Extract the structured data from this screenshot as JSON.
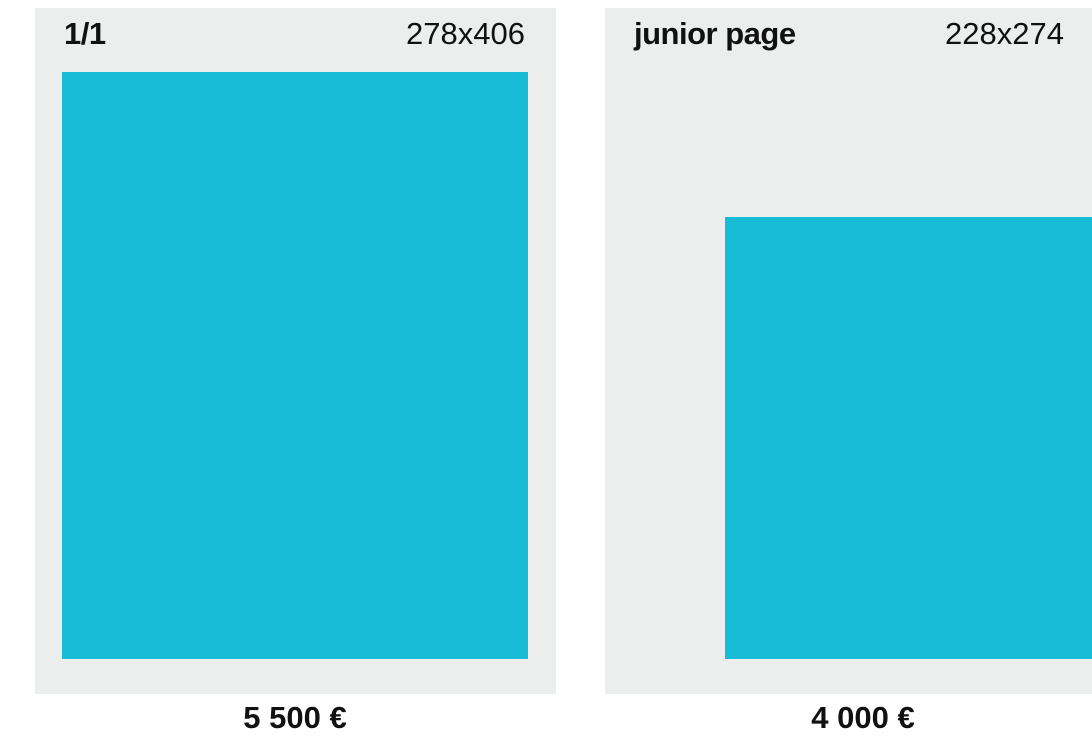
{
  "cards": [
    {
      "title": "1/1",
      "size": "278x406",
      "price": "5 500 €"
    },
    {
      "title": "junior page",
      "size": "228x274",
      "price": "4 000 €"
    }
  ]
}
